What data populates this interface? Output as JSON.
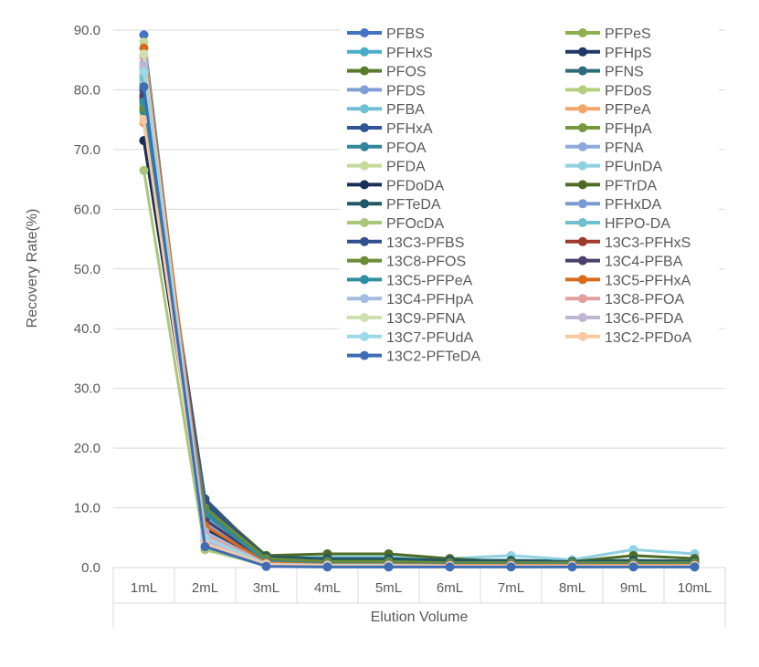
{
  "chart_data": {
    "type": "line",
    "title": "",
    "xlabel": "Elution Volume",
    "ylabel": "Recovery Rate(%)",
    "ylim": [
      0,
      90
    ],
    "yticks": [
      "0.0",
      "10.0",
      "20.0",
      "30.0",
      "40.0",
      "50.0",
      "60.0",
      "70.0",
      "80.0",
      "90.0"
    ],
    "grid": "horizontal",
    "legend_position": "top-right (inside plot area, two columns)",
    "categories": [
      "1mL",
      "2mL",
      "3mL",
      "4mL",
      "5mL",
      "6mL",
      "7mL",
      "8mL",
      "9mL",
      "10mL"
    ],
    "series": [
      {
        "name": "PFBS",
        "color": "#4472C4",
        "values": [
          89.2,
          4.0,
          0.5,
          0.3,
          0.3,
          0.2,
          0.2,
          0.2,
          0.2,
          0.2
        ]
      },
      {
        "name": "PFPeS",
        "color": "#8DB04F",
        "values": [
          77.5,
          4.5,
          0.6,
          0.4,
          0.4,
          0.3,
          0.3,
          0.3,
          0.3,
          0.3
        ]
      },
      {
        "name": "PFHxS",
        "color": "#4BACC6",
        "values": [
          81.0,
          5.0,
          0.8,
          0.5,
          0.5,
          0.4,
          0.4,
          0.4,
          0.4,
          0.4
        ]
      },
      {
        "name": "PFHpS",
        "color": "#1F3864",
        "values": [
          71.5,
          6.0,
          0.9,
          0.6,
          0.6,
          0.5,
          0.5,
          0.5,
          0.5,
          0.5
        ]
      },
      {
        "name": "PFOS",
        "color": "#5A7A2E",
        "values": [
          79.0,
          9.0,
          1.5,
          1.2,
          1.2,
          1.0,
          1.0,
          1.0,
          1.0,
          1.0
        ]
      },
      {
        "name": "PFNS",
        "color": "#2E6B7A",
        "values": [
          80.0,
          10.5,
          2.0,
          1.5,
          1.5,
          1.2,
          1.2,
          1.1,
          1.2,
          1.1
        ]
      },
      {
        "name": "PFDS",
        "color": "#7F9FD4",
        "values": [
          82.5,
          8.5,
          1.0,
          0.8,
          0.8,
          0.6,
          0.6,
          0.6,
          0.6,
          0.6
        ]
      },
      {
        "name": "PFDoS",
        "color": "#B5CF7F",
        "values": [
          76.0,
          7.0,
          1.0,
          0.8,
          0.8,
          0.6,
          0.6,
          0.6,
          0.6,
          0.6
        ]
      },
      {
        "name": "PFBA",
        "color": "#6FC0D4",
        "values": [
          83.5,
          3.5,
          0.5,
          0.4,
          0.4,
          0.3,
          0.3,
          0.3,
          0.3,
          0.3
        ]
      },
      {
        "name": "PFPeA",
        "color": "#F4A46A",
        "values": [
          74.5,
          4.0,
          0.5,
          0.4,
          0.4,
          0.3,
          0.3,
          0.3,
          0.3,
          0.3
        ]
      },
      {
        "name": "PFHxA",
        "color": "#2F5597",
        "values": [
          80.5,
          11.5,
          1.5,
          0.8,
          0.8,
          0.5,
          0.5,
          0.5,
          0.5,
          0.5
        ]
      },
      {
        "name": "PFHpA",
        "color": "#77993C",
        "values": [
          78.0,
          10.0,
          1.2,
          0.8,
          0.8,
          0.6,
          0.6,
          0.6,
          0.6,
          0.6
        ]
      },
      {
        "name": "PFOA",
        "color": "#31859C",
        "values": [
          76.5,
          9.5,
          1.0,
          0.7,
          0.7,
          0.5,
          0.5,
          0.5,
          0.5,
          0.5
        ]
      },
      {
        "name": "PFNA",
        "color": "#8EAADB",
        "values": [
          79.5,
          7.5,
          0.9,
          0.6,
          0.6,
          0.5,
          0.5,
          0.5,
          0.5,
          0.5
        ]
      },
      {
        "name": "PFDA",
        "color": "#C4DA9C",
        "values": [
          88.0,
          3.0,
          0.3,
          0.3,
          0.3,
          0.2,
          0.2,
          0.2,
          0.2,
          0.2
        ]
      },
      {
        "name": "PFUnDA",
        "color": "#8FD1E1",
        "values": [
          81.5,
          5.5,
          1.5,
          1.8,
          1.8,
          1.5,
          2.0,
          1.3,
          3.0,
          2.3
        ]
      },
      {
        "name": "PFDoDA",
        "color": "#1A2E5A",
        "values": [
          71.5,
          6.5,
          0.8,
          0.5,
          0.5,
          0.4,
          0.4,
          0.4,
          0.4,
          0.4
        ]
      },
      {
        "name": "PFTrDA",
        "color": "#4E6B25",
        "values": [
          78.5,
          11.0,
          2.0,
          2.3,
          2.3,
          1.5,
          1.0,
          1.0,
          2.0,
          1.5
        ]
      },
      {
        "name": "PFTeDA",
        "color": "#225866",
        "values": [
          77.0,
          10.0,
          1.8,
          1.5,
          1.5,
          1.2,
          1.2,
          1.0,
          1.2,
          1.0
        ]
      },
      {
        "name": "PFHxDA",
        "color": "#7A9BD1",
        "values": [
          80.0,
          8.0,
          1.2,
          0.8,
          0.8,
          0.6,
          0.6,
          0.6,
          0.6,
          0.6
        ]
      },
      {
        "name": "PFOcDA",
        "color": "#A9C77A",
        "values": [
          66.5,
          3.0,
          0.5,
          0.4,
          0.4,
          0.3,
          0.3,
          0.3,
          0.3,
          0.3
        ]
      },
      {
        "name": "HFPO-DA",
        "color": "#6FBFCF",
        "values": [
          82.0,
          5.0,
          0.6,
          0.4,
          0.4,
          0.3,
          0.3,
          0.3,
          0.3,
          0.3
        ]
      },
      {
        "name": "13C3-PFBS",
        "color": "#2F4F8F",
        "values": [
          80.0,
          11.0,
          1.5,
          1.0,
          1.0,
          0.8,
          0.8,
          0.8,
          0.8,
          0.8
        ]
      },
      {
        "name": "13C3-PFHxS",
        "color": "#9E3A2E",
        "values": [
          78.5,
          9.0,
          1.0,
          0.6,
          0.6,
          0.5,
          0.5,
          0.5,
          0.5,
          0.5
        ]
      },
      {
        "name": "13C8-PFOS",
        "color": "#6B8E35",
        "values": [
          77.0,
          10.0,
          1.5,
          1.0,
          1.0,
          0.8,
          0.8,
          0.8,
          0.8,
          0.8
        ]
      },
      {
        "name": "13C4-PFBA",
        "color": "#4B3F6B",
        "values": [
          79.0,
          8.0,
          1.0,
          0.6,
          0.6,
          0.5,
          0.5,
          0.5,
          0.5,
          0.5
        ]
      },
      {
        "name": "13C5-PFPeA",
        "color": "#2E8FA0",
        "values": [
          78.0,
          9.0,
          1.0,
          0.6,
          0.6,
          0.5,
          0.5,
          0.5,
          0.5,
          0.5
        ]
      },
      {
        "name": "13C5-PFHxA",
        "color": "#D86A1A",
        "values": [
          87.0,
          7.0,
          0.8,
          0.5,
          0.5,
          0.4,
          0.4,
          0.4,
          0.4,
          0.4
        ]
      },
      {
        "name": "13C4-PFHpA",
        "color": "#A3BCE0",
        "values": [
          84.5,
          6.0,
          0.6,
          0.4,
          0.4,
          0.3,
          0.3,
          0.3,
          0.3,
          0.3
        ]
      },
      {
        "name": "13C8-PFOA",
        "color": "#E0A0A0",
        "values": [
          85.5,
          5.5,
          0.6,
          0.4,
          0.4,
          0.3,
          0.3,
          0.3,
          0.3,
          0.3
        ]
      },
      {
        "name": "13C9-PFNA",
        "color": "#CFE0B0",
        "values": [
          86.0,
          4.0,
          0.5,
          0.3,
          0.3,
          0.3,
          0.3,
          0.3,
          0.3,
          0.3
        ]
      },
      {
        "name": "13C6-PFDA",
        "color": "#C0B4D4",
        "values": [
          84.0,
          4.5,
          0.5,
          0.3,
          0.3,
          0.3,
          0.3,
          0.3,
          0.3,
          0.3
        ]
      },
      {
        "name": "13C7-PFUdA",
        "color": "#9CD8E8",
        "values": [
          83.0,
          5.0,
          0.6,
          0.4,
          0.4,
          0.3,
          0.3,
          0.3,
          0.3,
          0.3
        ]
      },
      {
        "name": "13C2-PFDoA",
        "color": "#F8C9A0",
        "values": [
          75.0,
          4.0,
          0.5,
          0.3,
          0.3,
          0.3,
          0.3,
          0.3,
          0.3,
          0.3
        ]
      },
      {
        "name": "13C2-PFTeDA",
        "color": "#3E6DB5",
        "values": [
          80.5,
          3.5,
          0.2,
          0.1,
          0.1,
          0.1,
          0.1,
          0.1,
          0.1,
          0.1
        ]
      }
    ]
  }
}
